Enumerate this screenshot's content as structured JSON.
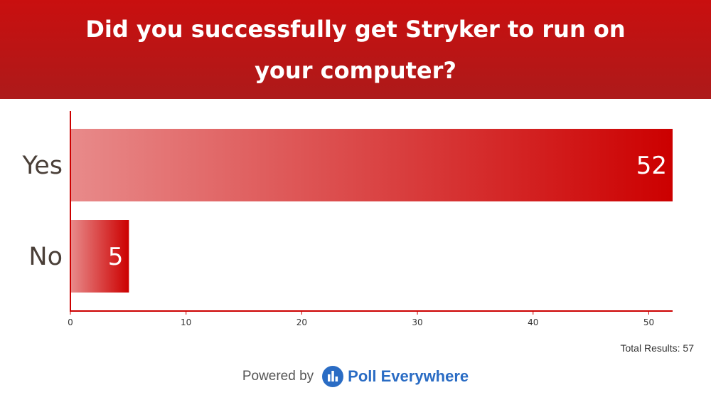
{
  "header": {
    "title": "Did you successfully get Stryker to run on your computer?"
  },
  "chart_data": {
    "type": "bar",
    "orientation": "horizontal",
    "title": "Did you successfully get Stryker to run on your computer?",
    "categories": [
      "Yes",
      "No"
    ],
    "values": [
      52,
      5
    ],
    "xlim": [
      0,
      52
    ],
    "xticks": [
      0,
      10,
      20,
      30,
      40,
      50
    ],
    "grid": false,
    "colors": {
      "bar_start": "#e88a8a",
      "bar_end": "#cc0000",
      "axis": "#cc0000"
    }
  },
  "footer": {
    "total_label": "Total Results: 57",
    "powered_by": "Powered by",
    "brand": "Poll Everywhere",
    "brand_color": "#2a6cc4"
  }
}
